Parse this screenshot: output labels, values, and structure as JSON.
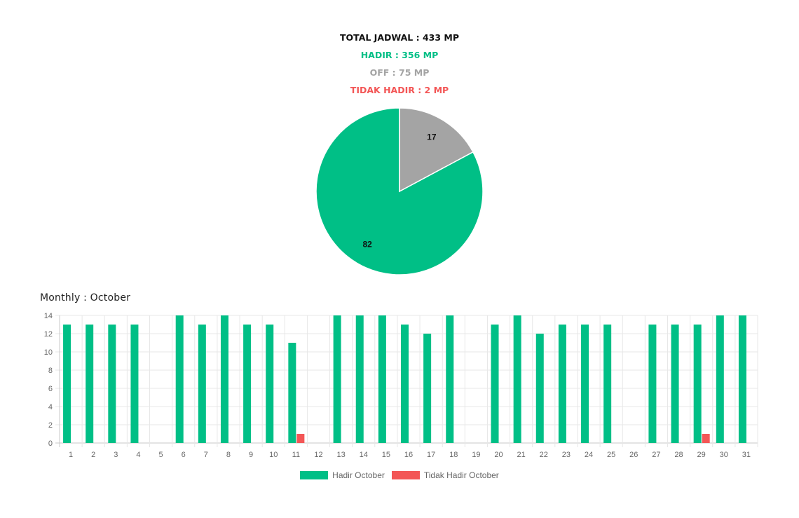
{
  "summary": {
    "total": "TOTAL JADWAL : 433 MP",
    "hadir": "HADIR : 356 MP",
    "off": "OFF : 75 MP",
    "tidak_hadir": "TIDAK HADIR : 2 MP"
  },
  "monthly_title": "Monthly : October",
  "colors": {
    "hadir": "#00bf86",
    "off": "#a4a4a4",
    "tidak_hadir": "#f35656"
  },
  "chart_data": [
    {
      "type": "pie",
      "slices": [
        {
          "label": "82",
          "value": 82,
          "color": "#00bf86"
        },
        {
          "label": "17",
          "value": 17,
          "color": "#a4a4a4"
        }
      ]
    },
    {
      "type": "bar",
      "categories": [
        "1",
        "2",
        "3",
        "4",
        "5",
        "6",
        "7",
        "8",
        "9",
        "10",
        "11",
        "12",
        "13",
        "14",
        "15",
        "16",
        "17",
        "18",
        "19",
        "20",
        "21",
        "22",
        "23",
        "24",
        "25",
        "26",
        "27",
        "28",
        "29",
        "30",
        "31"
      ],
      "series": [
        {
          "name": "Hadir October",
          "color": "#00bf86",
          "values": [
            13,
            13,
            13,
            13,
            0,
            14,
            13,
            14,
            13,
            13,
            11,
            0,
            14,
            14,
            14,
            13,
            12,
            14,
            0,
            13,
            14,
            12,
            13,
            13,
            13,
            0,
            13,
            13,
            13,
            14,
            14
          ]
        },
        {
          "name": "Tidak Hadir October",
          "color": "#f35656",
          "values": [
            0,
            0,
            0,
            0,
            0,
            0,
            0,
            0,
            0,
            0,
            1,
            0,
            0,
            0,
            0,
            0,
            0,
            0,
            0,
            0,
            0,
            0,
            0,
            0,
            0,
            0,
            0,
            0,
            1,
            0,
            0
          ]
        }
      ],
      "ylim": [
        0,
        14
      ],
      "yticks": [
        "0",
        "2",
        "4",
        "6",
        "8",
        "10",
        "12",
        "14"
      ],
      "grid": true,
      "legend": "bottom"
    }
  ]
}
